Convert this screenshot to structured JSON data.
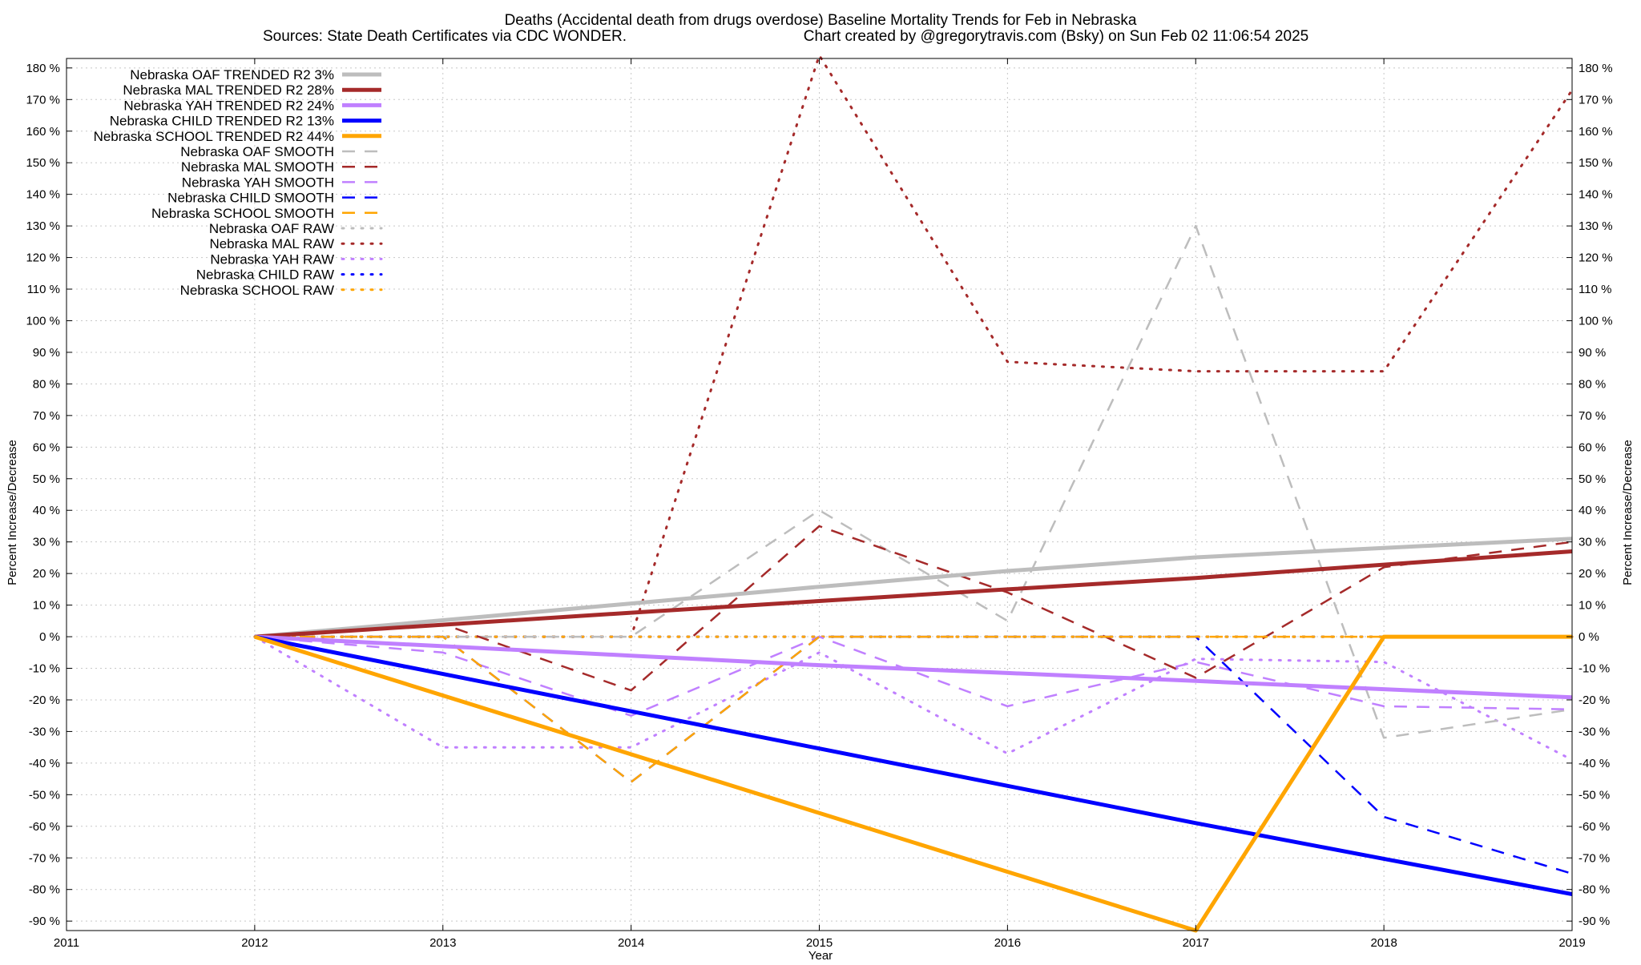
{
  "chart_data": {
    "type": "line",
    "title": "Deaths (Accidental death from drugs overdose)  Baseline Mortality Trends for Feb in Nebraska",
    "subtitle_left": "Sources: State Death Certificates via CDC WONDER.",
    "subtitle_right": "Chart created by @gregorytravis.com (Bsky) on Sun Feb 02 11:06:54 2025",
    "xlabel": "Year",
    "ylabel_left": "Percent Increase/Decrease",
    "ylabel_right": "Percent Increase/Decrease",
    "xlim": [
      2011,
      2019
    ],
    "ylim": [
      -93,
      183
    ],
    "x_ticks": [
      2011,
      2012,
      2013,
      2014,
      2015,
      2016,
      2017,
      2018,
      2019
    ],
    "y_ticks": [
      -90,
      -80,
      -70,
      -60,
      -50,
      -40,
      -30,
      -20,
      -10,
      0,
      10,
      20,
      30,
      40,
      50,
      60,
      70,
      80,
      90,
      100,
      110,
      120,
      130,
      140,
      150,
      160,
      170,
      180
    ],
    "y_tick_suffix": " %",
    "grid": true,
    "legend_position": "top-left",
    "colors": {
      "OAF": "#bdbdbd",
      "MAL": "#a52a2a",
      "YAH": "#c080ff",
      "CHILD": "#0000ff",
      "SCHOOL": "#ffa500"
    },
    "series": [
      {
        "name": "Nebraska OAF TRENDED R2  3%",
        "group": "OAF",
        "style": "trend",
        "x": [
          2012,
          2013,
          2014,
          2015,
          2016,
          2017,
          2018,
          2019
        ],
        "y": [
          0,
          5.2,
          10.5,
          15.8,
          20.8,
          25.1,
          28.1,
          31
        ]
      },
      {
        "name": "Nebraska MAL TRENDED R2  28%",
        "group": "MAL",
        "style": "trend",
        "x": [
          2012,
          2013,
          2014,
          2015,
          2016,
          2017,
          2018,
          2019
        ],
        "y": [
          0,
          3.8,
          7.6,
          11.3,
          15,
          18.6,
          22.8,
          27
        ]
      },
      {
        "name": "Nebraska YAH TRENDED R2  24%",
        "group": "YAH",
        "style": "trend",
        "x": [
          2012,
          2013,
          2014,
          2015,
          2016,
          2017,
          2018,
          2019
        ],
        "y": [
          0,
          -3,
          -6,
          -9,
          -11.5,
          -14,
          -16.6,
          -19.2
        ]
      },
      {
        "name": "Nebraska CHILD TRENDED R2  13%",
        "group": "CHILD",
        "style": "trend",
        "x": [
          2012,
          2013,
          2014,
          2015,
          2016,
          2017,
          2018,
          2019
        ],
        "y": [
          0,
          -11.8,
          -23.6,
          -35.4,
          -47.2,
          -59,
          -70.3,
          -81.5
        ]
      },
      {
        "name": "Nebraska SCHOOL TRENDED R2  44%",
        "group": "SCHOOL",
        "style": "trend",
        "x": [
          2012,
          2017,
          2018,
          2019
        ],
        "y": [
          0,
          -93,
          0,
          0
        ]
      },
      {
        "name": "Nebraska OAF SMOOTH",
        "group": "OAF",
        "style": "smooth",
        "x": [
          2012,
          2013,
          2014,
          2015,
          2016,
          2017,
          2018,
          2019
        ],
        "y": [
          0,
          0,
          0,
          40,
          5,
          130,
          -32,
          -23
        ]
      },
      {
        "name": "Nebraska MAL SMOOTH",
        "group": "MAL",
        "style": "smooth",
        "x": [
          2012,
          2013,
          2014,
          2015,
          2016,
          2017,
          2018,
          2019
        ],
        "y": [
          0,
          4,
          -17,
          35,
          14,
          -13,
          22,
          30
        ]
      },
      {
        "name": "Nebraska YAH SMOOTH",
        "group": "YAH",
        "style": "smooth",
        "x": [
          2012,
          2013,
          2014,
          2015,
          2016,
          2017,
          2018,
          2019
        ],
        "y": [
          0,
          -5,
          -25,
          0,
          -22,
          -8,
          -22,
          -23
        ]
      },
      {
        "name": "Nebraska CHILD SMOOTH",
        "group": "CHILD",
        "style": "smooth",
        "x": [
          2012,
          2013,
          2014,
          2015,
          2016,
          2017,
          2018,
          2019
        ],
        "y": [
          0,
          0,
          -46,
          0,
          0,
          0,
          -57,
          -75
        ]
      },
      {
        "name": "Nebraska SCHOOL SMOOTH",
        "group": "SCHOOL",
        "style": "smooth",
        "x": [
          2012,
          2013,
          2014,
          2015,
          2016,
          2017,
          2018,
          2019
        ],
        "y": [
          0,
          0,
          -46,
          0,
          0,
          0,
          0,
          0
        ]
      },
      {
        "name": "Nebraska OAF RAW",
        "group": "OAF",
        "style": "raw",
        "x": [
          2012,
          2013,
          2014,
          2015,
          2016,
          2017,
          2018,
          2019
        ],
        "y": [
          0,
          0,
          0,
          0,
          0,
          0,
          0,
          0
        ]
      },
      {
        "name": "Nebraska MAL RAW",
        "group": "MAL",
        "style": "raw",
        "x": [
          2012,
          2013,
          2014,
          2015,
          2016,
          2017,
          2018,
          2019
        ],
        "y": [
          0,
          0,
          0,
          184,
          87,
          84,
          84,
          173
        ]
      },
      {
        "name": "Nebraska YAH RAW",
        "group": "YAH",
        "style": "raw",
        "x": [
          2012,
          2013,
          2014,
          2015,
          2016,
          2017,
          2018,
          2019
        ],
        "y": [
          0,
          -35,
          -35,
          -5,
          -37,
          -7,
          -8,
          -39
        ]
      },
      {
        "name": "Nebraska CHILD RAW",
        "group": "CHILD",
        "style": "raw",
        "x": [
          2012,
          2013,
          2014,
          2015,
          2016,
          2017,
          2018,
          2019
        ],
        "y": [
          0,
          0,
          0,
          0,
          0,
          0,
          0,
          0
        ]
      },
      {
        "name": "Nebraska SCHOOL RAW",
        "group": "SCHOOL",
        "style": "raw",
        "x": [
          2012,
          2013,
          2014,
          2015,
          2016,
          2017,
          2018,
          2019
        ],
        "y": [
          0,
          0,
          0,
          0,
          0,
          0,
          0,
          0
        ]
      }
    ]
  }
}
